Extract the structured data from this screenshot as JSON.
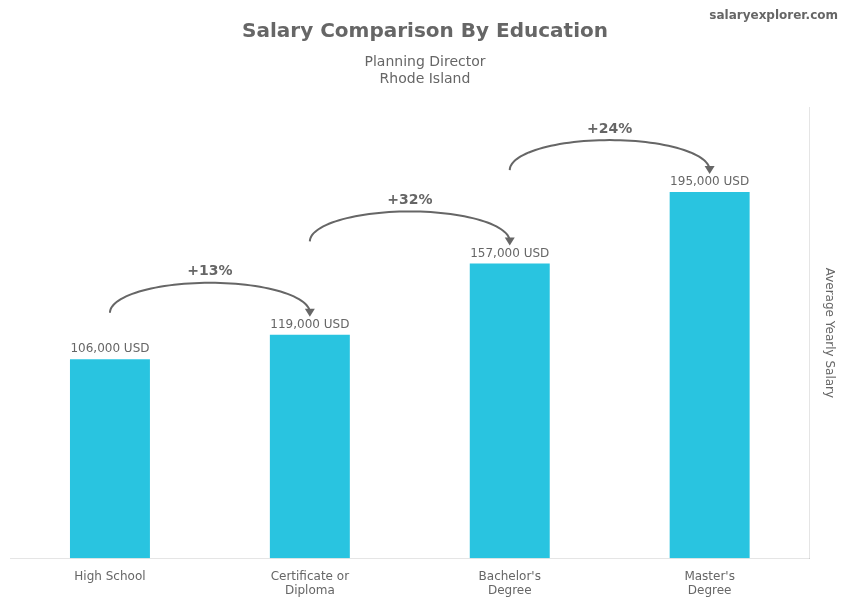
{
  "chart_data": {
    "type": "bar",
    "title": "Salary Comparison By Education",
    "subtitle": [
      "Planning Director",
      "Rhode Island"
    ],
    "source": "salaryexplorer.com",
    "ylabel": "Average Yearly Salary",
    "categories": [
      "High School",
      "Certificate or\nDiploma",
      "Bachelor's\nDegree",
      "Master's\nDegree"
    ],
    "values": [
      106000,
      119000,
      157000,
      195000
    ],
    "value_labels": [
      "106,000 USD",
      "119,000 USD",
      "157,000 USD",
      "195,000 USD"
    ],
    "data_labels": true,
    "annotations": [
      "+13%",
      "+32%",
      "+24%"
    ],
    "color": "#29c4e0",
    "ylim": [
      0,
      240000
    ],
    "tick_labels": "x",
    "grid": false
  }
}
